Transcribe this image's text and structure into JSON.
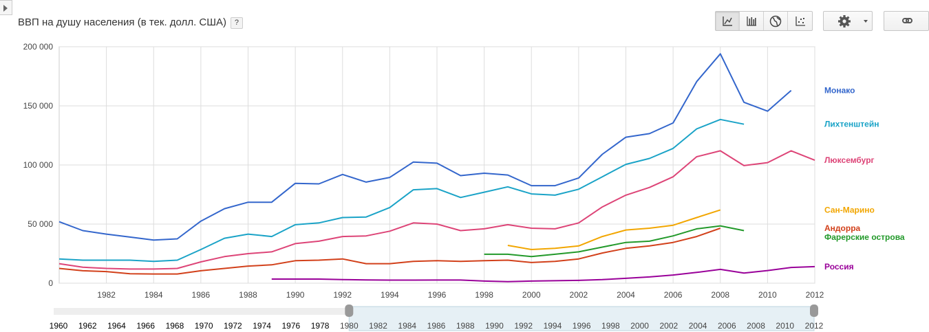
{
  "header": {
    "title": "ВВП на душу населения (в тек. долл. США)",
    "help_label": "?"
  },
  "toolbar": {
    "chart_types": [
      "line-chart-icon",
      "bar-chart-icon",
      "globe-map-icon",
      "scatter-chart-icon"
    ],
    "active_chart_type": "line-chart-icon",
    "settings_icon": "gear-icon",
    "link_icon": "link-icon"
  },
  "chart_data": {
    "type": "line",
    "title": "ВВП на душу населения (в тек. долл. США)",
    "xlim": [
      1980,
      2012
    ],
    "ylim": [
      0,
      200000
    ],
    "x_ticks": [
      1982,
      1984,
      1986,
      1988,
      1990,
      1992,
      1994,
      1996,
      1998,
      2000,
      2002,
      2004,
      2006,
      2008,
      2010,
      2012
    ],
    "x_tick_labels": [
      "1982",
      "1984",
      "1986",
      "1988",
      "1990",
      "1992",
      "1994",
      "1996",
      "1998",
      "2000",
      "2002",
      "2004",
      "2006",
      "2008",
      "2010",
      "2012"
    ],
    "y_ticks": [
      0,
      50000,
      100000,
      150000,
      200000
    ],
    "y_tick_labels": [
      "0",
      "50 000",
      "100 000",
      "150 000",
      "200 000"
    ],
    "grid": true,
    "legend_placement": "right",
    "series": [
      {
        "name": "Монако",
        "color": "#3366cc",
        "x": [
          1980,
          1981,
          1982,
          1983,
          1984,
          1985,
          1986,
          1987,
          1988,
          1989,
          1990,
          1991,
          1992,
          1993,
          1994,
          1995,
          1996,
          1997,
          1998,
          1999,
          2000,
          2001,
          2002,
          2003,
          2004,
          2005,
          2006,
          2007,
          2008,
          2009,
          2010,
          2011
        ],
        "y": [
          52000,
          44500,
          41500,
          39000,
          36500,
          37500,
          52500,
          63000,
          68500,
          68500,
          84500,
          84000,
          92000,
          85500,
          89500,
          102500,
          101500,
          91000,
          93000,
          91500,
          82500,
          82500,
          89000,
          109000,
          123500,
          126500,
          135500,
          170500,
          194000,
          153000,
          145500,
          163000
        ]
      },
      {
        "name": "Лихтенштейн",
        "color": "#1aa3c7",
        "x": [
          1980,
          1981,
          1982,
          1983,
          1984,
          1985,
          1986,
          1987,
          1988,
          1989,
          1990,
          1991,
          1992,
          1993,
          1994,
          1995,
          1996,
          1997,
          1998,
          1999,
          2000,
          2001,
          2002,
          2003,
          2004,
          2005,
          2006,
          2007,
          2008,
          2009
        ],
        "y": [
          20500,
          19500,
          19500,
          19500,
          18500,
          19500,
          28500,
          38000,
          41500,
          39500,
          49500,
          51000,
          55500,
          56000,
          64000,
          79000,
          80000,
          72500,
          77000,
          81500,
          75500,
          74500,
          79500,
          90000,
          100500,
          105500,
          114000,
          130500,
          138500,
          134500
        ]
      },
      {
        "name": "Люксембург",
        "color": "#dd4477",
        "x": [
          1980,
          1981,
          1982,
          1983,
          1984,
          1985,
          1986,
          1987,
          1988,
          1989,
          1990,
          1991,
          1992,
          1993,
          1994,
          1995,
          1996,
          1997,
          1998,
          1999,
          2000,
          2001,
          2002,
          2003,
          2004,
          2005,
          2006,
          2007,
          2008,
          2009,
          2010,
          2011,
          2012
        ],
        "y": [
          16500,
          13500,
          12500,
          12000,
          12000,
          12500,
          18000,
          22500,
          25000,
          26500,
          33500,
          35500,
          39500,
          40000,
          44000,
          51000,
          50000,
          44500,
          46000,
          49500,
          46500,
          46000,
          51000,
          64500,
          74500,
          81000,
          90000,
          107000,
          112000,
          99500,
          102000,
          112000,
          104000
        ]
      },
      {
        "name": "Сан-Марино",
        "color": "#f2a600",
        "x": [
          1999,
          2000,
          2001,
          2002,
          2003,
          2004,
          2005,
          2006,
          2007,
          2008
        ],
        "y": [
          32000,
          28500,
          29500,
          31500,
          39500,
          45000,
          46500,
          49000,
          55500,
          62000
        ]
      },
      {
        "name": "Андорра",
        "color": "#d2401a",
        "x": [
          1980,
          1981,
          1982,
          1983,
          1984,
          1985,
          1986,
          1987,
          1988,
          1989,
          1990,
          1991,
          1992,
          1993,
          1994,
          1995,
          1996,
          1997,
          1998,
          1999,
          2000,
          2001,
          2002,
          2003,
          2004,
          2005,
          2006,
          2007,
          2008
        ],
        "y": [
          12500,
          10500,
          9800,
          8000,
          7800,
          7800,
          10500,
          12500,
          14500,
          15500,
          19000,
          19500,
          20500,
          16500,
          16500,
          18500,
          19000,
          18500,
          19000,
          19500,
          17500,
          18500,
          20500,
          25500,
          29500,
          31500,
          34500,
          39500,
          46500
        ]
      },
      {
        "name": "Фарерские острова",
        "color": "#22992a",
        "x": [
          1998,
          1999,
          2000,
          2001,
          2002,
          2003,
          2004,
          2005,
          2006,
          2007,
          2008,
          2009
        ],
        "y": [
          24500,
          24500,
          22500,
          24500,
          26500,
          30500,
          34500,
          35500,
          40000,
          46000,
          48500,
          44500
        ]
      },
      {
        "name": "Россия",
        "color": "#990099",
        "x": [
          1989,
          1990,
          1991,
          1992,
          1993,
          1994,
          1995,
          1996,
          1997,
          1998,
          1999,
          2000,
          2001,
          2002,
          2003,
          2004,
          2005,
          2006,
          2007,
          2008,
          2009,
          2010,
          2011,
          2012
        ],
        "y": [
          3500,
          3500,
          3500,
          3000,
          2800,
          2600,
          2600,
          2700,
          2700,
          1800,
          1300,
          1800,
          2100,
          2400,
          3000,
          4100,
          5300,
          6900,
          9100,
          11700,
          8600,
          10700,
          13300,
          14000
        ]
      }
    ]
  },
  "timeline": {
    "labels": [
      "1960",
      "1962",
      "1964",
      "1966",
      "1968",
      "1970",
      "1972",
      "1974",
      "1976",
      "1978",
      "1980",
      "1982",
      "1984",
      "1986",
      "1988",
      "1990",
      "1992",
      "1994",
      "1996",
      "1998",
      "2000",
      "2002",
      "2004",
      "2006",
      "2008",
      "2010",
      "2012"
    ],
    "full_range": [
      1960,
      2012
    ],
    "selected_range": [
      1980,
      2012
    ]
  }
}
